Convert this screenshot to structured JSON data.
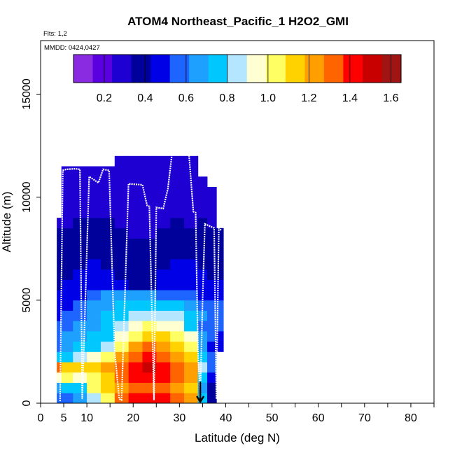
{
  "chart_data": {
    "type": "heatmap",
    "title": "ATOM4 Northeast_Pacific_1 H2O2_GMI",
    "flights_label": "Flts: 1,2",
    "date_label": "MMDD: 0424,0427",
    "xlabel": "Latitude (deg N)",
    "ylabel": "Altitude (m)",
    "xlim": [
      0,
      85
    ],
    "ylim": [
      0,
      17600
    ],
    "x_ticks": [
      0,
      5,
      10,
      20,
      30,
      40,
      50,
      60,
      70,
      80
    ],
    "x_minor_ticks": [
      15,
      25,
      35,
      45,
      55,
      65,
      75,
      85
    ],
    "y_ticks": [
      0,
      5000,
      10000,
      15000
    ],
    "colorbar": {
      "range": [
        0.05,
        1.65
      ],
      "ticks": [
        0.2,
        0.4,
        0.6,
        0.8,
        1.0,
        1.2,
        1.4,
        1.6
      ],
      "tick_labels": [
        "0.2",
        "0.4",
        "0.6",
        "0.8",
        "1.0",
        "1.2",
        "1.4",
        "1.6"
      ],
      "colors": [
        "#8a2be2",
        "#5a00e0",
        "#1e00d2",
        "#00009a",
        "#0000e6",
        "#1e64ff",
        "#1ea0ff",
        "#00c8ff",
        "#b4e6ff",
        "#ffffd2",
        "#ffff64",
        "#ffd200",
        "#ffa000",
        "#ff6400",
        "#ff0000",
        "#c80000",
        "#a01414"
      ]
    },
    "grid_levels_m": [
      0,
      500,
      1000,
      1500,
      2000,
      2500,
      3000,
      3500,
      4000,
      4500,
      5000,
      5500,
      6000,
      6500,
      7000,
      7500,
      8000,
      8500,
      9000,
      9500,
      10000,
      10500,
      11000,
      11500,
      12000
    ],
    "columns": [
      {
        "lat": [
          3.5,
          4.5
        ],
        "values": [
          0.55,
          0.7,
          0.95,
          1.3,
          0.75,
          0.6,
          0.6,
          0.55,
          0.5,
          0.45,
          0.45,
          0.4,
          0.38,
          0.36,
          0.35,
          0.34,
          0.34,
          0.3
        ]
      },
      {
        "lat": [
          4.5,
          7.0
        ],
        "values": [
          0.6,
          0.75,
          1.0,
          1.1,
          0.8,
          0.7,
          0.65,
          0.6,
          0.55,
          0.5,
          0.48,
          0.45,
          0.42,
          0.4,
          0.38,
          0.36,
          0.34,
          0.32,
          0.3,
          0.3,
          0.3,
          0.3,
          0.3
        ]
      },
      {
        "lat": [
          7.0,
          10.0
        ],
        "values": [
          0.65,
          0.8,
          0.9,
          1.1,
          0.85,
          0.75,
          0.7,
          0.65,
          0.6,
          0.55,
          0.5,
          0.47,
          0.45,
          0.42,
          0.4,
          0.38,
          0.36,
          0.34,
          0.32,
          0.3,
          0.3,
          0.3,
          0.3
        ]
      },
      {
        "lat": [
          10.0,
          13.0
        ],
        "values": [
          0.85,
          1.0,
          1.05,
          1.15,
          0.9,
          0.8,
          0.75,
          0.7,
          0.65,
          0.62,
          0.55,
          0.5,
          0.47,
          0.44,
          0.42,
          0.4,
          0.37,
          0.35,
          0.33,
          0.3,
          0.3,
          0.3,
          0.3
        ]
      },
      {
        "lat": [
          13.0,
          16.0
        ],
        "values": [
          1.05,
          1.1,
          1.1,
          1.2,
          1.0,
          0.85,
          0.8,
          0.78,
          0.75,
          0.7,
          0.62,
          0.5,
          0.45,
          0.42,
          0.4,
          0.38,
          0.36,
          0.34,
          0.32,
          0.3,
          0.3,
          0.3,
          0.3
        ]
      },
      {
        "lat": [
          16.0,
          19.0
        ],
        "values": [
          1.3,
          1.25,
          1.3,
          1.3,
          1.2,
          1.05,
          0.95,
          0.85,
          0.8,
          0.72,
          0.62,
          0.45,
          0.42,
          0.4,
          0.38,
          0.36,
          0.34,
          0.32,
          0.3,
          0.28,
          0.28,
          0.28,
          0.28,
          0.25
        ]
      },
      {
        "lat": [
          19.0,
          22.0
        ],
        "values": [
          1.4,
          1.3,
          1.4,
          1.45,
          1.35,
          1.2,
          1.05,
          0.95,
          0.85,
          0.75,
          0.62,
          0.42,
          0.4,
          0.38,
          0.36,
          0.34,
          0.32,
          0.3,
          0.28,
          0.28,
          0.28,
          0.28,
          0.28,
          0.25
        ]
      },
      {
        "lat": [
          22.0,
          25.0
        ],
        "values": [
          1.45,
          1.35,
          1.45,
          1.5,
          1.4,
          1.3,
          1.15,
          1.0,
          0.88,
          0.78,
          0.62,
          0.42,
          0.4,
          0.38,
          0.36,
          0.34,
          0.32,
          0.3,
          0.28,
          0.28,
          0.28,
          0.28,
          0.28,
          0.25
        ]
      },
      {
        "lat": [
          25.0,
          28.0
        ],
        "values": [
          1.4,
          1.35,
          1.4,
          1.45,
          1.35,
          1.25,
          1.1,
          0.95,
          0.85,
          0.75,
          0.6,
          0.5,
          0.45,
          0.42,
          0.4,
          0.38,
          0.35,
          0.32,
          0.3,
          0.28,
          0.28,
          0.28,
          0.28,
          0.28,
          0.2
        ]
      },
      {
        "lat": [
          28.0,
          31.0
        ],
        "values": [
          1.3,
          1.2,
          1.3,
          1.35,
          1.25,
          1.15,
          1.0,
          0.9,
          0.82,
          0.72,
          0.6,
          0.52,
          0.48,
          0.45,
          0.42,
          0.4,
          0.37,
          0.34,
          0.32,
          0.3,
          0.3,
          0.3,
          0.3,
          0.3,
          0.15
        ]
      },
      {
        "lat": [
          31.0,
          34.0
        ],
        "values": [
          1.2,
          1.1,
          1.2,
          1.25,
          1.1,
          1.0,
          0.9,
          0.8,
          0.75,
          0.68,
          0.55,
          0.5,
          0.46,
          0.43,
          0.4,
          0.38,
          0.36,
          0.33,
          0.31,
          0.3,
          0.3,
          0.3,
          0.3,
          0.3
        ]
      },
      {
        "lat": [
          34.0,
          36.0
        ],
        "values": [
          0.8,
          0.7,
          0.8,
          0.85,
          0.75,
          0.7,
          0.65,
          0.6,
          0.62,
          0.6,
          0.52,
          0.48,
          0.45,
          0.42,
          0.4,
          0.38,
          0.36,
          0.34,
          0.32,
          0.3,
          0.3,
          0.3
        ]
      },
      {
        "lat": [
          36.0,
          38.0
        ],
        "values": [
          0.4,
          0.4,
          0.45,
          0.6,
          0.55,
          0.5,
          0.55,
          0.58,
          0.6,
          0.55,
          0.5,
          0.45,
          0.42,
          0.4,
          0.38,
          0.36,
          0.34,
          0.32,
          0.3,
          0.3,
          0.3
        ]
      },
      {
        "lat": [
          38.0,
          39.5
        ],
        "values": [
          null,
          null,
          null,
          null,
          null,
          0.45,
          0.5,
          0.55,
          0.6,
          0.55,
          0.5,
          0.45,
          0.42,
          0.4,
          0.38,
          0.36,
          0.34
        ]
      }
    ],
    "flight_track": {
      "lat": [
        4.2,
        4.8,
        5.5,
        7.5,
        8.5,
        9.0,
        10.5,
        12.5,
        13.5,
        14.8,
        16.0,
        17.0,
        17.5,
        19.0,
        22.0,
        23.0,
        23.5,
        24.5,
        25.0,
        26.5,
        27.5,
        28.5,
        30.0,
        32.0,
        33.0,
        33.5,
        34.0,
        34.5,
        35.0,
        35.5,
        36.5,
        37.5,
        38.0,
        38.5,
        39.0
      ],
      "alt": [
        100,
        11300,
        11350,
        11380,
        11350,
        200,
        11000,
        10700,
        11350,
        11300,
        2500,
        200,
        150,
        10650,
        10600,
        9600,
        9550,
        150,
        9500,
        9450,
        10400,
        12300,
        12250,
        12250,
        9300,
        9250,
        2500,
        300,
        5000,
        8700,
        8600,
        8500,
        200,
        8500,
        8400
      ]
    },
    "marker_lat": 34.5
  }
}
